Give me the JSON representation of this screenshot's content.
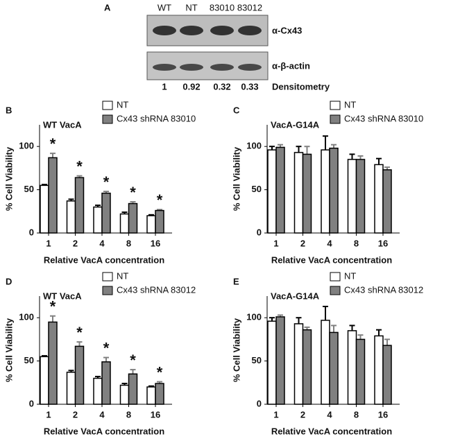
{
  "blot": {
    "label": "A",
    "lanes": [
      "WT",
      "NT",
      "83010",
      "83012"
    ],
    "antibodies": [
      "α-Cx43",
      "α-β-actin"
    ],
    "densitometry_label": "Densitometry",
    "densitometry": [
      1,
      0.92,
      0.32,
      0.33
    ]
  },
  "chart_data": [
    {
      "type": "bar",
      "label": "B",
      "title": "WT VacA",
      "categories": [
        "1",
        "2",
        "4",
        "8",
        "16"
      ],
      "xlabel": "Relative VacA concentration",
      "ylabel": "% Cell Viability",
      "ylim": [
        0,
        125
      ],
      "yticks": [
        0,
        50,
        100
      ],
      "series": [
        {
          "name": "NT",
          "color": "#ffffff",
          "values": [
            55,
            37,
            30,
            22,
            20
          ],
          "errors": [
            1,
            2,
            2,
            2,
            1
          ]
        },
        {
          "name": "Cx43 shRNA 83010",
          "color": "#808080",
          "values": [
            87,
            64,
            46,
            34,
            26
          ],
          "errors": [
            5,
            2,
            2,
            2,
            1
          ]
        }
      ],
      "significance": [
        "*",
        "*",
        "*",
        "*",
        "*"
      ]
    },
    {
      "type": "bar",
      "label": "C",
      "title": "VacA-G14A",
      "categories": [
        "1",
        "2",
        "4",
        "8",
        "16"
      ],
      "xlabel": "Relative VacA concentration",
      "ylabel": "% Cell Viability",
      "ylim": [
        0,
        125
      ],
      "yticks": [
        0,
        50,
        100
      ],
      "series": [
        {
          "name": "NT",
          "color": "#ffffff",
          "values": [
            96,
            93,
            96,
            85,
            79
          ],
          "errors": [
            4,
            7,
            16,
            6,
            7
          ]
        },
        {
          "name": "Cx43 shRNA 83010",
          "color": "#808080",
          "values": [
            99,
            91,
            98,
            85,
            73
          ],
          "errors": [
            3,
            9,
            4,
            4,
            3
          ]
        }
      ]
    },
    {
      "type": "bar",
      "label": "D",
      "title": "WT VacA",
      "categories": [
        "1",
        "2",
        "4",
        "8",
        "16"
      ],
      "xlabel": "Relative VacA concentration",
      "ylabel": "% Cell Viability",
      "ylim": [
        0,
        125
      ],
      "yticks": [
        0,
        50,
        100
      ],
      "series": [
        {
          "name": "NT",
          "color": "#ffffff",
          "values": [
            55,
            37,
            30,
            22,
            20
          ],
          "errors": [
            1,
            2,
            2,
            2,
            1
          ]
        },
        {
          "name": "Cx43 shRNA 83012",
          "color": "#808080",
          "values": [
            95,
            67,
            49,
            35,
            24
          ],
          "errors": [
            7,
            5,
            5,
            5,
            2
          ]
        }
      ],
      "significance": [
        "*",
        "*",
        "*",
        "*",
        "*"
      ]
    },
    {
      "type": "bar",
      "label": "E",
      "title": "VacA-G14A",
      "categories": [
        "1",
        "2",
        "4",
        "8",
        "16"
      ],
      "xlabel": "Relative VacA concentration",
      "ylabel": "% Cell Viability",
      "ylim": [
        0,
        125
      ],
      "yticks": [
        0,
        50,
        100
      ],
      "series": [
        {
          "name": "NT",
          "color": "#ffffff",
          "values": [
            96,
            93,
            97,
            85,
            79
          ],
          "errors": [
            4,
            7,
            16,
            6,
            7
          ]
        },
        {
          "name": "Cx43 shRNA 83012",
          "color": "#808080",
          "values": [
            101,
            86,
            83,
            75,
            68
          ],
          "errors": [
            2,
            3,
            8,
            5,
            7
          ]
        }
      ]
    }
  ]
}
